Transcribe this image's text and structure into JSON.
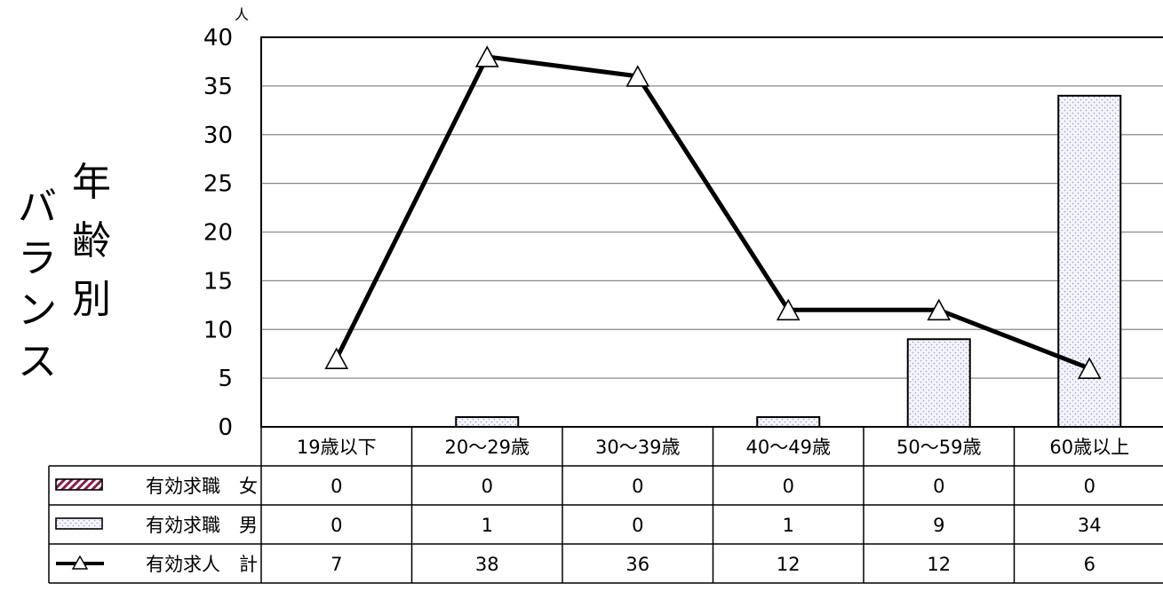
{
  "chart_data": {
    "type": "bar",
    "title_lines": [
      "年齢別",
      "バランス"
    ],
    "y_unit": "人",
    "ylim": [
      0,
      40
    ],
    "yticks": [
      0,
      5,
      10,
      15,
      20,
      25,
      30,
      35,
      40
    ],
    "grid": true,
    "categories": [
      "19歳以下",
      "20～29歳",
      "30～39歳",
      "40～49歳",
      "50～59歳",
      "60歳以上"
    ],
    "series": [
      {
        "name": "有効求職　女",
        "type": "bar",
        "pattern": "diagonal-hatch",
        "color": "#8b1a4a",
        "values": [
          0,
          0,
          0,
          0,
          0,
          0
        ]
      },
      {
        "name": "有効求職　男",
        "type": "bar",
        "pattern": "dots",
        "color": "#9a9ad8",
        "values": [
          0,
          1,
          0,
          1,
          9,
          34
        ]
      },
      {
        "name": "有効求人　計",
        "type": "line",
        "marker": "triangle",
        "color": "#000000",
        "values": [
          7,
          38,
          36,
          12,
          12,
          6
        ]
      }
    ],
    "table_values": [
      [
        "0",
        "0",
        "0",
        "0",
        "0",
        "0"
      ],
      [
        "0",
        "1",
        "0",
        "1",
        "9",
        "34"
      ],
      [
        "7",
        "38",
        "36",
        "12",
        "12",
        "6"
      ]
    ]
  }
}
